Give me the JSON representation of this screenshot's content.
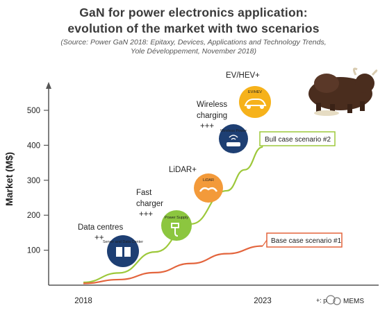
{
  "title_line1": "GaN for power electronics application:",
  "title_line2": "evolution of the market with two scenarios",
  "source_line1": "(Source: Power GaN 2018: Epitaxy, Devices, Applications and Technology Trends,",
  "source_line2": "Yole Développement, November 2018)",
  "watermark": "MEMS",
  "footnote": "+: p",
  "chart_data": {
    "type": "line",
    "ylabel": "Market (M$)",
    "xlabel": "",
    "x_ticks": [
      "2018",
      "2023"
    ],
    "y_ticks": [
      100,
      200,
      300,
      400,
      500
    ],
    "ylim": [
      0,
      530
    ],
    "series": [
      {
        "name": "Bull case scenario #2",
        "color": "#9dc83a",
        "points": [
          [
            2018.0,
            8
          ],
          [
            2019.0,
            35
          ],
          [
            2020.0,
            95
          ],
          [
            2021.0,
            175
          ],
          [
            2022.0,
            270
          ],
          [
            2022.5,
            330
          ],
          [
            2023.0,
            395
          ]
        ]
      },
      {
        "name": "Base case scenario #1",
        "color": "#e3643c",
        "points": [
          [
            2018.0,
            5
          ],
          [
            2019.0,
            16
          ],
          [
            2020.0,
            36
          ],
          [
            2021.0,
            62
          ],
          [
            2022.0,
            90
          ],
          [
            2023.0,
            112
          ]
        ]
      }
    ],
    "annotations": [
      {
        "label": "Data centres",
        "growth": "++",
        "icon_text": "Server and Data Center",
        "icon_color": "#1e3f73"
      },
      {
        "label": "Fast charger",
        "growth": "+++",
        "icon_text": "Power Supply",
        "icon_color": "#8cc63f"
      },
      {
        "label": "LiDAR+",
        "growth": "",
        "icon_text": "LiDAR",
        "icon_color": "#f39a3a"
      },
      {
        "label": "Wireless charging",
        "growth": "+++",
        "icon_text": "Wireless Power",
        "icon_color": "#1e3f73"
      },
      {
        "label": "EV/HEV+",
        "growth": "",
        "icon_text": "EV/HEV",
        "icon_color": "#f6b21b"
      }
    ]
  }
}
